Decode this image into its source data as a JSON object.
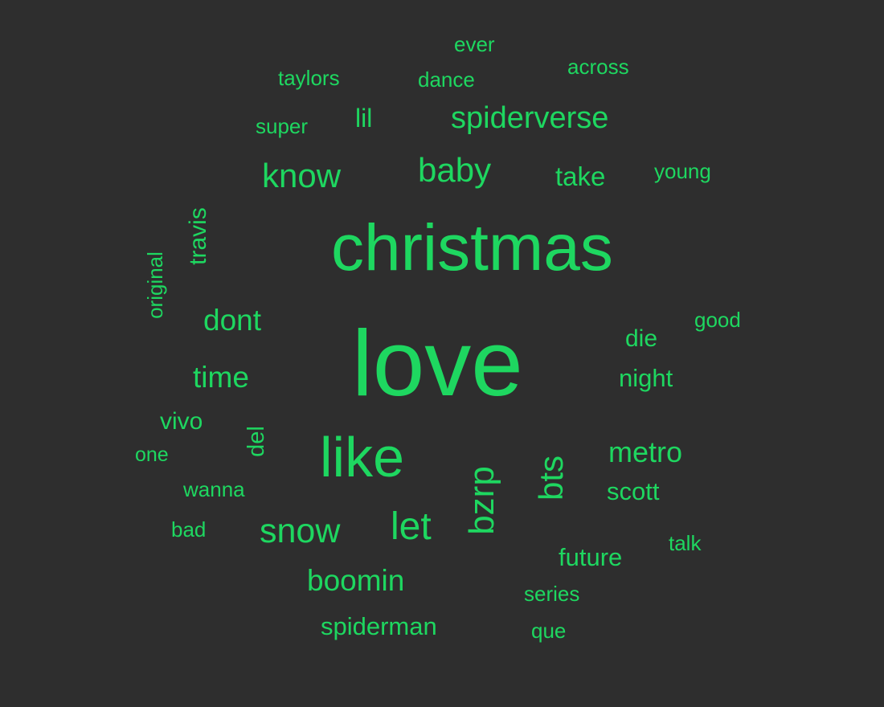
{
  "cloud": {
    "accent_color": "#1ed760",
    "background_color": "#2e2e2e",
    "words": [
      "love",
      "christmas",
      "like",
      "spiderverse",
      "know",
      "baby",
      "take",
      "bzrp",
      "bts",
      "metro",
      "snow",
      "let",
      "boomin",
      "dont",
      "time",
      "taylors",
      "dance",
      "across",
      "ever",
      "super",
      "lil",
      "young",
      "travis",
      "original",
      "good",
      "die",
      "night",
      "vivo",
      "del",
      "one",
      "wanna",
      "bad",
      "scott",
      "future",
      "talk",
      "series",
      "spiderman",
      "que"
    ]
  }
}
